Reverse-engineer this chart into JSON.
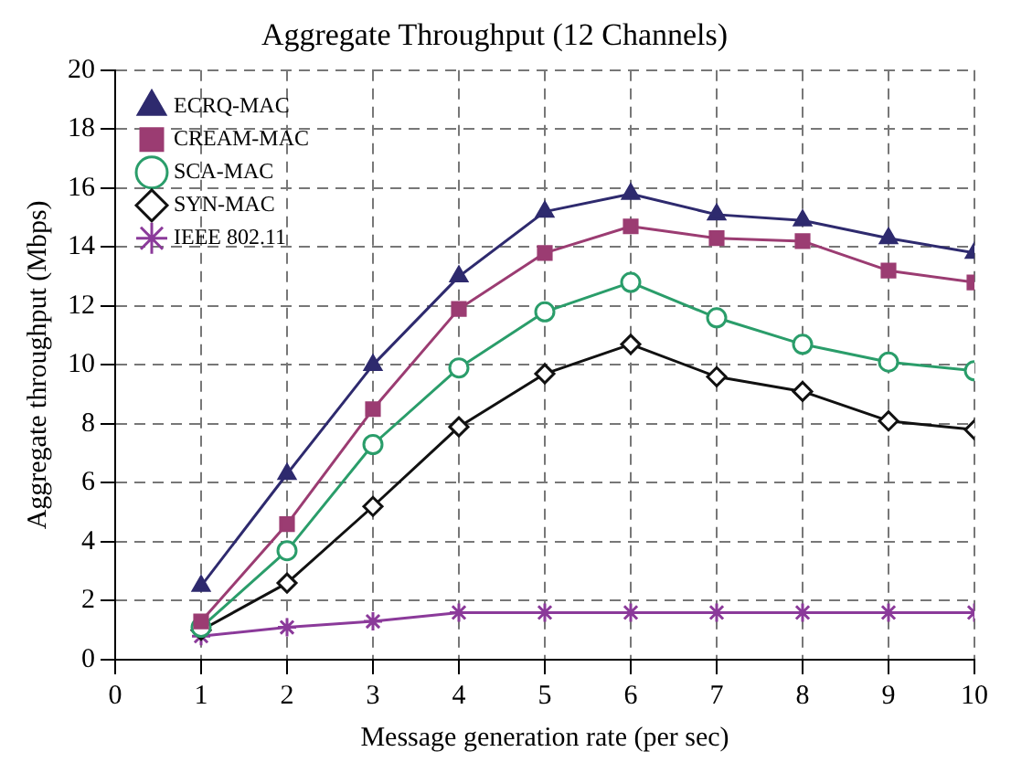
{
  "chart_data": {
    "type": "line",
    "title": "Aggregate Throughput (12 Channels)",
    "xlabel": "Message generation rate (per sec)",
    "ylabel": "Aggregate throughput (Mbps)",
    "x": [
      1,
      2,
      3,
      4,
      5,
      6,
      7,
      8,
      9,
      10
    ],
    "xlim": [
      0,
      10
    ],
    "xticks": [
      0,
      1,
      2,
      3,
      4,
      5,
      6,
      7,
      8,
      9,
      10
    ],
    "ylim": [
      0,
      20
    ],
    "yticks": [
      0,
      2,
      4,
      6,
      8,
      10,
      12,
      14,
      16,
      18,
      20
    ],
    "grid": true,
    "legend": "top left",
    "line_style": "solid",
    "series": [
      {
        "name": "ECRQ-MAC",
        "color": "#2e2a6e",
        "marker": "triangle",
        "values": [
          2.5,
          6.3,
          10,
          13,
          15.2,
          15.8,
          15.1,
          14.9,
          14.3,
          13.8
        ]
      },
      {
        "name": "CREAM-MAC",
        "color": "#9b3c72",
        "marker": "square",
        "values": [
          1.3,
          4.6,
          8.5,
          11.9,
          13.8,
          14.7,
          14.3,
          14.2,
          13.2,
          12.8
        ]
      },
      {
        "name": "SCA-MAC",
        "color": "#2a9d6a",
        "marker": "circle",
        "values": [
          1.1,
          3.7,
          7.3,
          9.9,
          11.8,
          12.8,
          11.6,
          10.7,
          10.1,
          9.8
        ]
      },
      {
        "name": "SYN-MAC",
        "color": "#111111",
        "marker": "diamond",
        "values": [
          1.0,
          2.6,
          5.2,
          7.9,
          9.7,
          10.7,
          9.6,
          9.1,
          8.1,
          7.8
        ]
      },
      {
        "name": "IEEE 802.11",
        "color": "#8b3a9a",
        "marker": "cross",
        "values": [
          0.8,
          1.1,
          1.3,
          1.6,
          1.6,
          1.6,
          1.6,
          1.6,
          1.6,
          1.6
        ]
      }
    ]
  }
}
